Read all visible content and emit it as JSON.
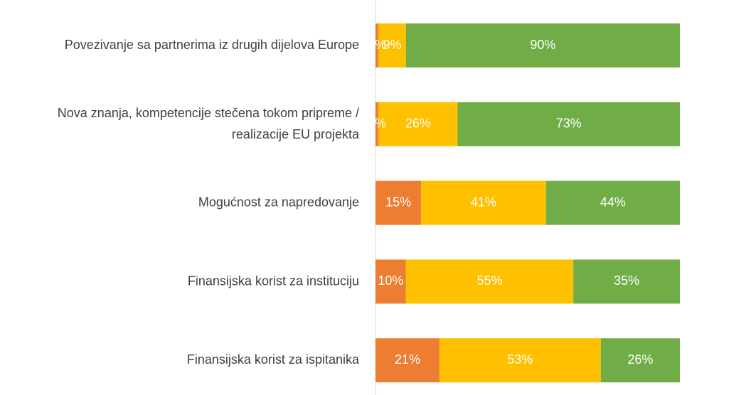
{
  "chart_data": {
    "type": "stacked_bar_horizontal",
    "categories": [
      "Povezivanje sa partnerima iz drugih dijelova Europe",
      "Nova znanja, kompetencije stečena tokom pripreme / realizacije EU projekta",
      "Mogućnost za napredovanje",
      "Finansijska korist za instituciju",
      "Finansijska korist za ispitanika"
    ],
    "series": [
      {
        "color": "#ed7d31",
        "values": [
          1,
          1,
          15,
          10,
          21
        ],
        "value_labels": [
          "1%",
          "1%",
          "15%",
          "10%",
          "21%"
        ]
      },
      {
        "color": "#ffc000",
        "values": [
          9,
          26,
          41,
          55,
          53
        ],
        "value_labels": [
          "9%",
          "26%",
          "41%",
          "55%",
          "53%"
        ]
      },
      {
        "color": "#70ad47",
        "values": [
          90,
          73,
          44,
          35,
          26
        ],
        "value_labels": [
          "90%",
          "73%",
          "44%",
          "35%",
          "26%"
        ]
      }
    ],
    "xlim": [
      0,
      100
    ]
  }
}
